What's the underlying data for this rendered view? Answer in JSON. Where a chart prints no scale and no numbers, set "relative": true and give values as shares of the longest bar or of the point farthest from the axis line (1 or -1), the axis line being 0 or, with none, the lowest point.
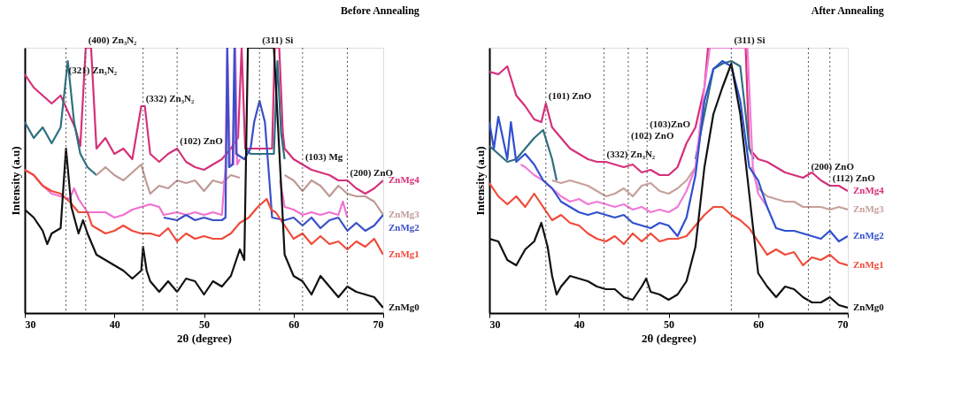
{
  "chart_data": [
    {
      "type": "line",
      "relative": true,
      "title": "Before Annealing",
      "xlabel": "2θ (degree)",
      "ylabel": "Intensity (a.u)",
      "xlim": [
        30,
        70
      ],
      "xticks": [
        30,
        40,
        50,
        60,
        70
      ],
      "grid": false,
      "legend": false,
      "tick_labels": "x",
      "line_style": "solid",
      "marker": "none",
      "series": [
        {
          "name": "ZnMg4",
          "color": "#d6307a",
          "x": [
            30,
            31,
            32,
            33,
            34,
            34.8,
            35.6,
            36.2,
            36.8,
            37.4,
            38,
            39,
            40,
            41,
            42,
            43,
            43.4,
            44,
            45,
            46,
            47,
            48,
            49,
            50,
            51,
            52,
            53,
            53.8,
            54.2,
            54.6,
            57.6,
            57.9,
            58.4,
            58.8,
            59,
            60,
            61,
            62,
            63,
            64,
            65,
            66,
            67,
            68,
            69,
            70
          ],
          "values": [
            0.9,
            0.85,
            0.82,
            0.79,
            0.82,
            0.76,
            0.7,
            0.63,
            1.0,
            1.0,
            0.62,
            0.66,
            0.6,
            0.62,
            0.58,
            0.78,
            0.78,
            0.6,
            0.57,
            0.6,
            0.62,
            0.57,
            0.55,
            0.54,
            0.56,
            0.58,
            0.62,
            0.66,
            1.0,
            0.62,
            0.62,
            1.0,
            1.0,
            0.68,
            0.62,
            0.58,
            0.56,
            0.54,
            0.53,
            0.52,
            0.5,
            0.5,
            0.47,
            0.45,
            0.47,
            0.5
          ]
        },
        {
          "color": "#2e7080",
          "x": [
            30,
            31,
            32,
            33,
            34,
            34.8,
            35.5,
            36.2,
            37,
            38,
            38.2,
            54.6,
            55.2,
            57.8,
            58.2,
            58.6,
            59
          ],
          "values": [
            0.72,
            0.66,
            0.7,
            0.64,
            0.7,
            0.95,
            0.72,
            0.6,
            0.55,
            0.52,
            null,
            0.62,
            0.6,
            0.6,
            0.95,
            0.68,
            0.58
          ]
        },
        {
          "name": "ZnMg3",
          "color": "#c09a96",
          "x": [
            38,
            39,
            40,
            41,
            42,
            43,
            43.5,
            44,
            45,
            46,
            47,
            48,
            49,
            50,
            51,
            52,
            53,
            54,
            54.2,
            59,
            60,
            61,
            62,
            63,
            64,
            65,
            66,
            67,
            68,
            69,
            70
          ],
          "values": [
            0.52,
            0.55,
            0.52,
            0.5,
            0.53,
            0.56,
            0.5,
            0.45,
            0.48,
            0.47,
            0.5,
            0.49,
            0.5,
            0.46,
            0.5,
            0.49,
            0.52,
            0.51,
            null,
            0.52,
            0.5,
            0.46,
            0.5,
            0.48,
            0.44,
            0.48,
            0.45,
            0.44,
            0.44,
            0.42,
            0.37
          ]
        },
        {
          "color": "#f070d0",
          "x": [
            30,
            31,
            32,
            33,
            34,
            35,
            35.5,
            36,
            37,
            38,
            39,
            40,
            41,
            42,
            43,
            44,
            45,
            45.5,
            47,
            48,
            49,
            50,
            51,
            52,
            52.4,
            52.6,
            52.9,
            53.3,
            53.5,
            53.7,
            54,
            54.2,
            58.5,
            59,
            60,
            61,
            62,
            63,
            64,
            65,
            65.5,
            66
          ],
          "values": [
            0.54,
            0.52,
            0.48,
            0.45,
            0.44,
            0.43,
            0.47,
            0.43,
            0.38,
            0.38,
            0.38,
            0.36,
            0.37,
            0.39,
            0.4,
            0.41,
            0.4,
            0.37,
            0.38,
            0.37,
            0.38,
            0.37,
            0.38,
            0.37,
            0.55,
            1.0,
            0.56,
            0.56,
            1.0,
            0.56,
            0.58,
            null,
            0.5,
            0.4,
            0.39,
            0.37,
            0.38,
            0.37,
            0.38,
            0.37,
            0.42,
            0.36
          ]
        },
        {
          "name": "ZnMg2",
          "color": "#3a4fc8",
          "x": [
            45.5,
            47,
            48,
            49,
            50,
            51,
            52,
            52.4,
            52.6,
            52.8,
            53.2,
            53.4,
            53.6,
            54.5,
            55.2,
            55.6,
            56.2,
            56.8,
            57.3,
            57.6,
            59,
            60,
            61,
            62,
            63,
            64,
            65,
            66,
            67,
            68,
            69,
            70
          ],
          "values": [
            0.36,
            0.35,
            0.37,
            0.35,
            0.36,
            0.35,
            0.35,
            0.36,
            1.0,
            0.55,
            0.56,
            1.0,
            0.6,
            0.58,
            0.62,
            0.72,
            0.8,
            0.72,
            0.5,
            0.36,
            0.35,
            0.36,
            0.33,
            0.36,
            0.32,
            0.35,
            0.36,
            0.31,
            0.34,
            0.31,
            0.33,
            0.37
          ]
        },
        {
          "name": "ZnMg1",
          "color": "#f04a3a",
          "x": [
            30,
            31,
            32,
            33,
            34,
            35,
            36,
            37,
            37.5,
            38,
            39,
            40,
            41,
            42,
            43,
            44,
            45,
            46,
            47,
            48,
            49,
            50,
            51,
            52,
            53,
            54,
            55,
            56,
            57,
            57.5,
            58,
            59,
            60,
            61,
            62,
            63,
            64,
            65,
            66,
            67,
            68,
            69,
            70
          ],
          "values": [
            0.54,
            0.52,
            0.48,
            0.46,
            0.45,
            0.42,
            0.38,
            0.38,
            0.33,
            0.32,
            0.3,
            0.31,
            0.33,
            0.31,
            0.3,
            0.3,
            0.29,
            0.32,
            0.27,
            0.3,
            0.28,
            0.29,
            0.28,
            0.28,
            0.3,
            0.34,
            0.36,
            0.4,
            0.43,
            0.39,
            0.38,
            0.33,
            0.28,
            0.3,
            0.26,
            0.29,
            0.26,
            0.27,
            0.24,
            0.27,
            0.25,
            0.28,
            0.22
          ]
        },
        {
          "name": "ZnMg0",
          "color": "#111111",
          "x": [
            30,
            31,
            32,
            32.5,
            33,
            34,
            34.6,
            35.2,
            36,
            36.5,
            37,
            38,
            39,
            40,
            41,
            42,
            43,
            43.2,
            43.6,
            44,
            45,
            46,
            47,
            48,
            49,
            50,
            51,
            52,
            53,
            54,
            54.5,
            54.9,
            57.8,
            58.5,
            59,
            60,
            61,
            62,
            63,
            64,
            65,
            66,
            67,
            68,
            69,
            70
          ],
          "values": [
            0.39,
            0.36,
            0.31,
            0.26,
            0.3,
            0.32,
            0.62,
            0.4,
            0.3,
            0.35,
            0.3,
            0.22,
            0.2,
            0.18,
            0.16,
            0.13,
            0.16,
            0.25,
            0.16,
            0.12,
            0.08,
            0.12,
            0.08,
            0.13,
            0.12,
            0.07,
            0.12,
            0.1,
            0.14,
            0.24,
            0.2,
            1.0,
            1.0,
            0.55,
            0.22,
            0.14,
            0.12,
            0.07,
            0.14,
            0.1,
            0.06,
            0.1,
            0.08,
            0.07,
            0.06,
            0.02
          ]
        }
      ],
      "ref_lines": [
        {
          "axis": "x",
          "value": 34.6,
          "line_style": "dotted",
          "label": "(321) Zn₃N₂"
        },
        {
          "axis": "x",
          "value": 36.8,
          "line_style": "dotted",
          "label": "(400) Zn₃N₂"
        },
        {
          "axis": "x",
          "value": 43.2,
          "line_style": "dotted",
          "label": "(332) Zn₃N₂"
        },
        {
          "axis": "x",
          "value": 47,
          "line_style": "dotted",
          "label": "(102) ZnO"
        },
        {
          "axis": "x",
          "value": 56.2,
          "line_style": "dotted",
          "label": "(311) Si"
        },
        {
          "axis": "x",
          "value": 61,
          "line_style": "dotted",
          "label": "(103) Mg"
        },
        {
          "axis": "x",
          "value": 66,
          "line_style": "dotted",
          "label": "(200) ZnO"
        }
      ]
    },
    {
      "type": "line",
      "relative": true,
      "title": "After Annealing",
      "xlabel": "2θ (degree)",
      "ylabel": "Intensity (a.u)",
      "xlim": [
        30,
        70
      ],
      "xticks": [
        30,
        40,
        50,
        60,
        70
      ],
      "grid": false,
      "legend": false,
      "tick_labels": "x",
      "line_style": "solid",
      "marker": "none",
      "series": [
        {
          "name": "ZnMg4",
          "color": "#d6307a",
          "x": [
            30,
            31,
            32,
            33,
            34,
            35,
            35.8,
            36.3,
            37,
            38,
            39,
            40,
            41,
            42,
            43,
            44,
            45,
            46,
            47,
            48,
            49,
            50,
            51,
            52,
            53,
            54,
            54.4,
            58.6,
            59,
            60,
            61,
            62,
            63,
            64,
            65,
            66,
            67,
            68,
            69,
            70
          ],
          "values": [
            0.91,
            0.9,
            0.93,
            0.82,
            0.78,
            0.73,
            0.72,
            0.79,
            0.7,
            0.66,
            0.62,
            0.6,
            0.58,
            0.57,
            0.57,
            0.56,
            0.55,
            0.56,
            0.53,
            0.54,
            0.52,
            0.52,
            0.55,
            0.64,
            0.7,
            0.85,
            1.0,
            1.0,
            0.62,
            0.58,
            0.57,
            0.55,
            0.53,
            0.52,
            0.51,
            0.53,
            0.5,
            0.48,
            0.48,
            0.46
          ]
        },
        {
          "color": "#2e7080",
          "x": [
            30,
            31,
            32,
            33,
            34,
            35,
            36,
            37,
            37.5,
            37.7,
            53,
            54,
            55,
            56,
            57,
            58,
            58.6,
            59,
            59.5
          ],
          "values": [
            0.63,
            0.6,
            0.57,
            0.58,
            0.62,
            0.66,
            0.69,
            0.58,
            0.5,
            null,
            0.58,
            0.75,
            0.92,
            0.94,
            0.95,
            0.93,
            0.75,
            0.62,
            0.58
          ]
        },
        {
          "name": "ZnMg3",
          "color": "#c8a09c",
          "x": [
            37,
            38,
            39,
            40,
            41,
            42,
            43,
            44,
            45,
            46,
            47,
            48,
            49,
            50,
            51,
            52,
            53,
            53.2,
            59.2,
            60,
            61,
            62,
            63,
            64,
            65,
            66,
            67,
            68,
            69,
            70
          ],
          "values": [
            0.5,
            0.49,
            0.5,
            0.49,
            0.48,
            0.46,
            0.44,
            0.45,
            0.47,
            0.44,
            0.48,
            0.49,
            0.46,
            0.45,
            0.47,
            0.5,
            0.55,
            null,
            0.55,
            0.47,
            0.44,
            0.43,
            0.42,
            0.42,
            0.4,
            0.4,
            0.4,
            0.39,
            0.4,
            0.39
          ]
        },
        {
          "color": "#f07ad8",
          "x": [
            33.5,
            34,
            35,
            36,
            37,
            38,
            39,
            40,
            41,
            42,
            43,
            44,
            45,
            46,
            47,
            48,
            49,
            50,
            51,
            52,
            53,
            54,
            54.6,
            58.8,
            59.4,
            60,
            61
          ],
          "values": [
            0.56,
            0.55,
            0.52,
            0.5,
            0.47,
            0.44,
            0.42,
            0.43,
            0.41,
            0.42,
            0.41,
            0.4,
            0.41,
            0.39,
            0.4,
            0.38,
            0.39,
            0.38,
            0.4,
            0.46,
            0.55,
            0.85,
            1.0,
            1.0,
            0.55,
            0.45,
            0.4
          ]
        },
        {
          "name": "ZnMg2",
          "color": "#3050d0",
          "x": [
            30,
            30.5,
            31,
            32,
            32.4,
            33,
            34,
            35,
            36,
            37,
            38,
            39,
            40,
            41,
            42,
            43,
            44,
            45,
            46,
            47,
            48,
            49,
            50,
            51,
            52,
            53,
            54,
            55,
            56,
            57,
            58,
            59,
            60,
            61,
            62,
            63,
            64,
            65,
            66,
            67,
            68,
            69,
            70
          ],
          "values": [
            0.72,
            0.62,
            0.74,
            0.58,
            0.72,
            0.57,
            0.6,
            0.56,
            0.5,
            0.47,
            0.42,
            0.4,
            0.38,
            0.37,
            0.38,
            0.37,
            0.36,
            0.37,
            0.34,
            0.33,
            0.32,
            0.34,
            0.33,
            0.29,
            0.36,
            0.52,
            0.8,
            0.92,
            0.95,
            0.93,
            0.8,
            0.55,
            0.5,
            0.4,
            0.32,
            0.31,
            0.31,
            0.3,
            0.29,
            0.28,
            0.31,
            0.27,
            0.29
          ]
        },
        {
          "name": "ZnMg1",
          "color": "#f04a3a",
          "x": [
            30,
            31,
            32,
            33,
            34,
            35,
            36,
            37,
            38,
            39,
            40,
            41,
            42,
            43,
            44,
            45,
            46,
            47,
            48,
            49,
            50,
            51,
            52,
            53,
            54,
            55,
            56,
            57,
            58,
            59,
            60,
            61,
            62,
            63,
            64,
            65,
            66,
            67,
            68,
            69,
            70
          ],
          "values": [
            0.49,
            0.44,
            0.41,
            0.44,
            0.4,
            0.45,
            0.4,
            0.35,
            0.37,
            0.34,
            0.33,
            0.3,
            0.28,
            0.27,
            0.29,
            0.26,
            0.3,
            0.27,
            0.3,
            0.27,
            0.28,
            0.28,
            0.29,
            0.33,
            0.37,
            0.4,
            0.4,
            0.37,
            0.35,
            0.32,
            0.27,
            0.22,
            0.24,
            0.22,
            0.23,
            0.18,
            0.21,
            0.2,
            0.22,
            0.19,
            0.18
          ]
        },
        {
          "name": "ZnMg0",
          "color": "#111111",
          "x": [
            30,
            31,
            32,
            33,
            34,
            35,
            35.8,
            36.5,
            37,
            37.5,
            38,
            39,
            40,
            41,
            42,
            43,
            44,
            45,
            46,
            47,
            47.5,
            48,
            49,
            50,
            51,
            52,
            53,
            54,
            55,
            56,
            57,
            58,
            59,
            60,
            61,
            62,
            63,
            64,
            65,
            66,
            67,
            68,
            69,
            70
          ],
          "values": [
            0.28,
            0.27,
            0.2,
            0.18,
            0.24,
            0.27,
            0.34,
            0.25,
            0.14,
            0.07,
            0.1,
            0.14,
            0.13,
            0.12,
            0.1,
            0.09,
            0.09,
            0.06,
            0.05,
            0.1,
            0.13,
            0.08,
            0.07,
            0.05,
            0.07,
            0.12,
            0.25,
            0.55,
            0.75,
            0.85,
            0.94,
            0.75,
            0.45,
            0.15,
            0.1,
            0.06,
            0.1,
            0.09,
            0.06,
            0.04,
            0.04,
            0.06,
            0.03,
            0.02
          ]
        }
      ],
      "ref_lines": [
        {
          "axis": "x",
          "value": 36.3,
          "line_style": "dotted",
          "label": "(101) ZnO"
        },
        {
          "axis": "x",
          "value": 42.8,
          "line_style": "dotted",
          "label": "(332) Zn₃N₂"
        },
        {
          "axis": "x",
          "value": 45.5,
          "line_style": "dotted",
          "label": "(102) ZnO"
        },
        {
          "axis": "x",
          "value": 47.6,
          "line_style": "dotted",
          "label": "(103)ZnO"
        },
        {
          "axis": "x",
          "value": 57,
          "line_style": "dotted",
          "label": "(311) Si"
        },
        {
          "axis": "x",
          "value": 65.6,
          "line_style": "dotted",
          "label": "(200) ZnO"
        },
        {
          "axis": "x",
          "value": 68,
          "line_style": "dotted",
          "label": "(112) ZnO"
        }
      ]
    }
  ]
}
